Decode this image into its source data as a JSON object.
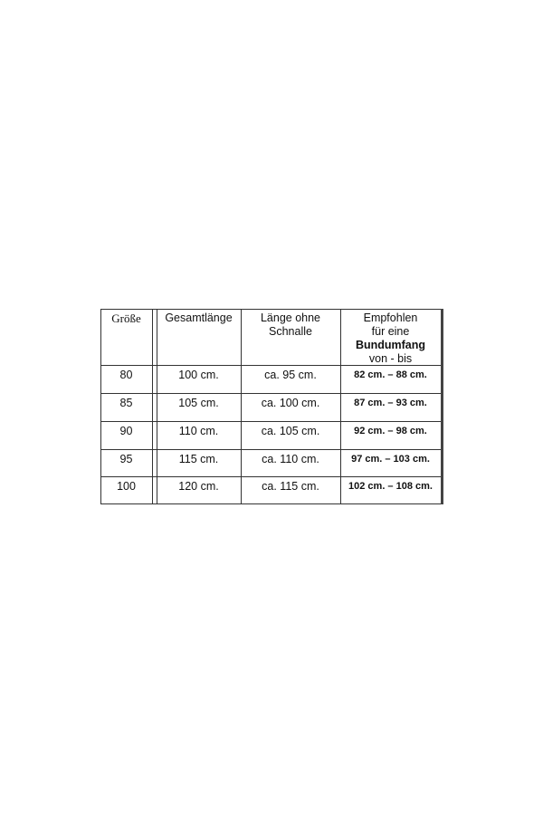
{
  "table": {
    "headers": {
      "size": "Größe",
      "total_length": "Gesamtlänge",
      "length_without_buckle": [
        "Länge ohne",
        "Schnalle"
      ],
      "recommended": [
        "Empfohlen",
        "für eine",
        "Bundumfang",
        "von - bis"
      ]
    },
    "rows": [
      {
        "size": "80",
        "total": "100 cm.",
        "without": "ca.  95 cm.",
        "range": "82 cm. – 88 cm."
      },
      {
        "size": "85",
        "total": "105 cm.",
        "without": "ca. 100 cm.",
        "range": "87 cm. – 93 cm."
      },
      {
        "size": "90",
        "total": "110 cm.",
        "without": "ca. 105 cm.",
        "range": "92 cm. – 98 cm."
      },
      {
        "size": "95",
        "total": "115 cm.",
        "without": "ca. 110 cm.",
        "range": "97 cm. – 103 cm."
      },
      {
        "size": "100",
        "total": "120 cm.",
        "without": "ca. 115 cm.",
        "range": "102 cm. – 108 cm."
      }
    ]
  }
}
